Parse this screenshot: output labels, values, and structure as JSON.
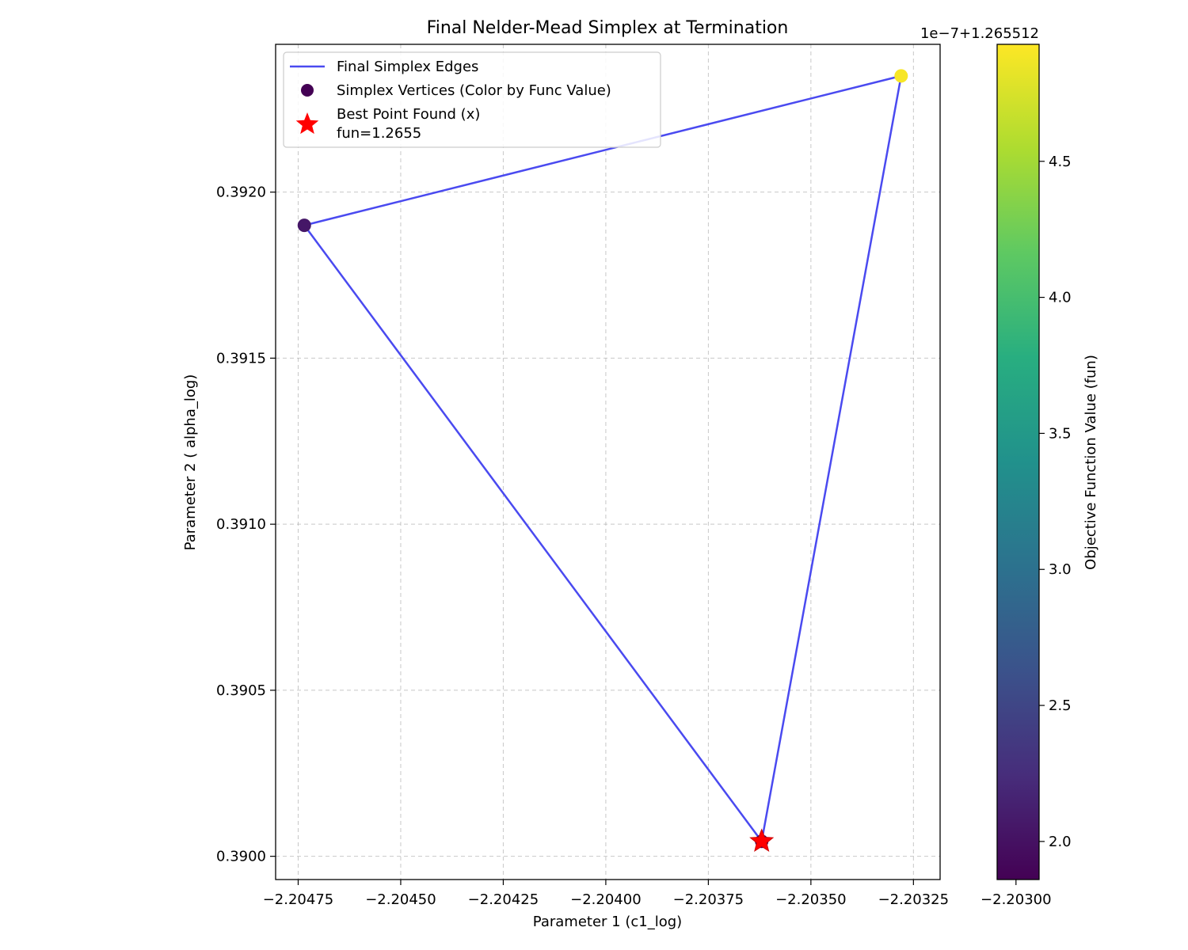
{
  "chart_data": {
    "type": "scatter",
    "title": "Final Nelder-Mead Simplex at Termination",
    "xlabel": "Parameter 1 (c1_log)",
    "ylabel": "Parameter 2 ( alpha_log)",
    "xlim": [
      -2.204805,
      -2.203185
    ],
    "ylim": [
      0.38993,
      0.392445
    ],
    "x_ticks": [
      -2.20475,
      -2.2045,
      -2.20425,
      -2.204,
      -2.20375,
      -2.2035,
      -2.20325,
      -2.203
    ],
    "x_tick_labels": [
      "−2.20475",
      "−2.20450",
      "−2.20425",
      "−2.20400",
      "−2.20375",
      "−2.20350",
      "−2.20325",
      "−2.20300"
    ],
    "y_ticks": [
      0.39,
      0.3905,
      0.391,
      0.3915,
      0.392
    ],
    "y_tick_labels": [
      "0.3900",
      "0.3905",
      "0.3910",
      "0.3915",
      "0.3920"
    ],
    "grid": true,
    "legend_position": "top-left",
    "series": [
      {
        "name": "Final Simplex Edges",
        "kind": "line",
        "color": "#4a4af0",
        "points": [
          {
            "x": -2.204735,
            "y": 0.3919
          },
          {
            "x": -2.20328,
            "y": 0.39235
          },
          {
            "x": -2.20362,
            "y": 0.390045
          },
          {
            "x": -2.204735,
            "y": 0.3919
          }
        ]
      },
      {
        "name": "Simplex Vertices (Color by Func Value)",
        "kind": "scatter",
        "colormap": "viridis",
        "points": [
          {
            "x": -2.204735,
            "y": 0.3919,
            "value": 2.05
          },
          {
            "x": -2.20328,
            "y": 0.39235,
            "value": 4.9
          },
          {
            "x": -2.20362,
            "y": 0.390045,
            "value": 1.86
          }
        ]
      },
      {
        "name": "Best Point Found (x)\nfun=1.2655",
        "kind": "marker",
        "marker": "star",
        "color": "#ff0000",
        "points": [
          {
            "x": -2.20362,
            "y": 0.390045
          }
        ]
      }
    ],
    "colorbar": {
      "label": "Objective Function Value (fun)",
      "offset_label": "1e−7+1.265512",
      "range": [
        1.86,
        4.93
      ],
      "ticks": [
        2.0,
        2.5,
        3.0,
        3.5,
        4.0,
        4.5
      ],
      "tick_labels": [
        "2.0",
        "2.5",
        "3.0",
        "3.5",
        "4.0",
        "4.5"
      ],
      "colormap": "viridis"
    }
  }
}
